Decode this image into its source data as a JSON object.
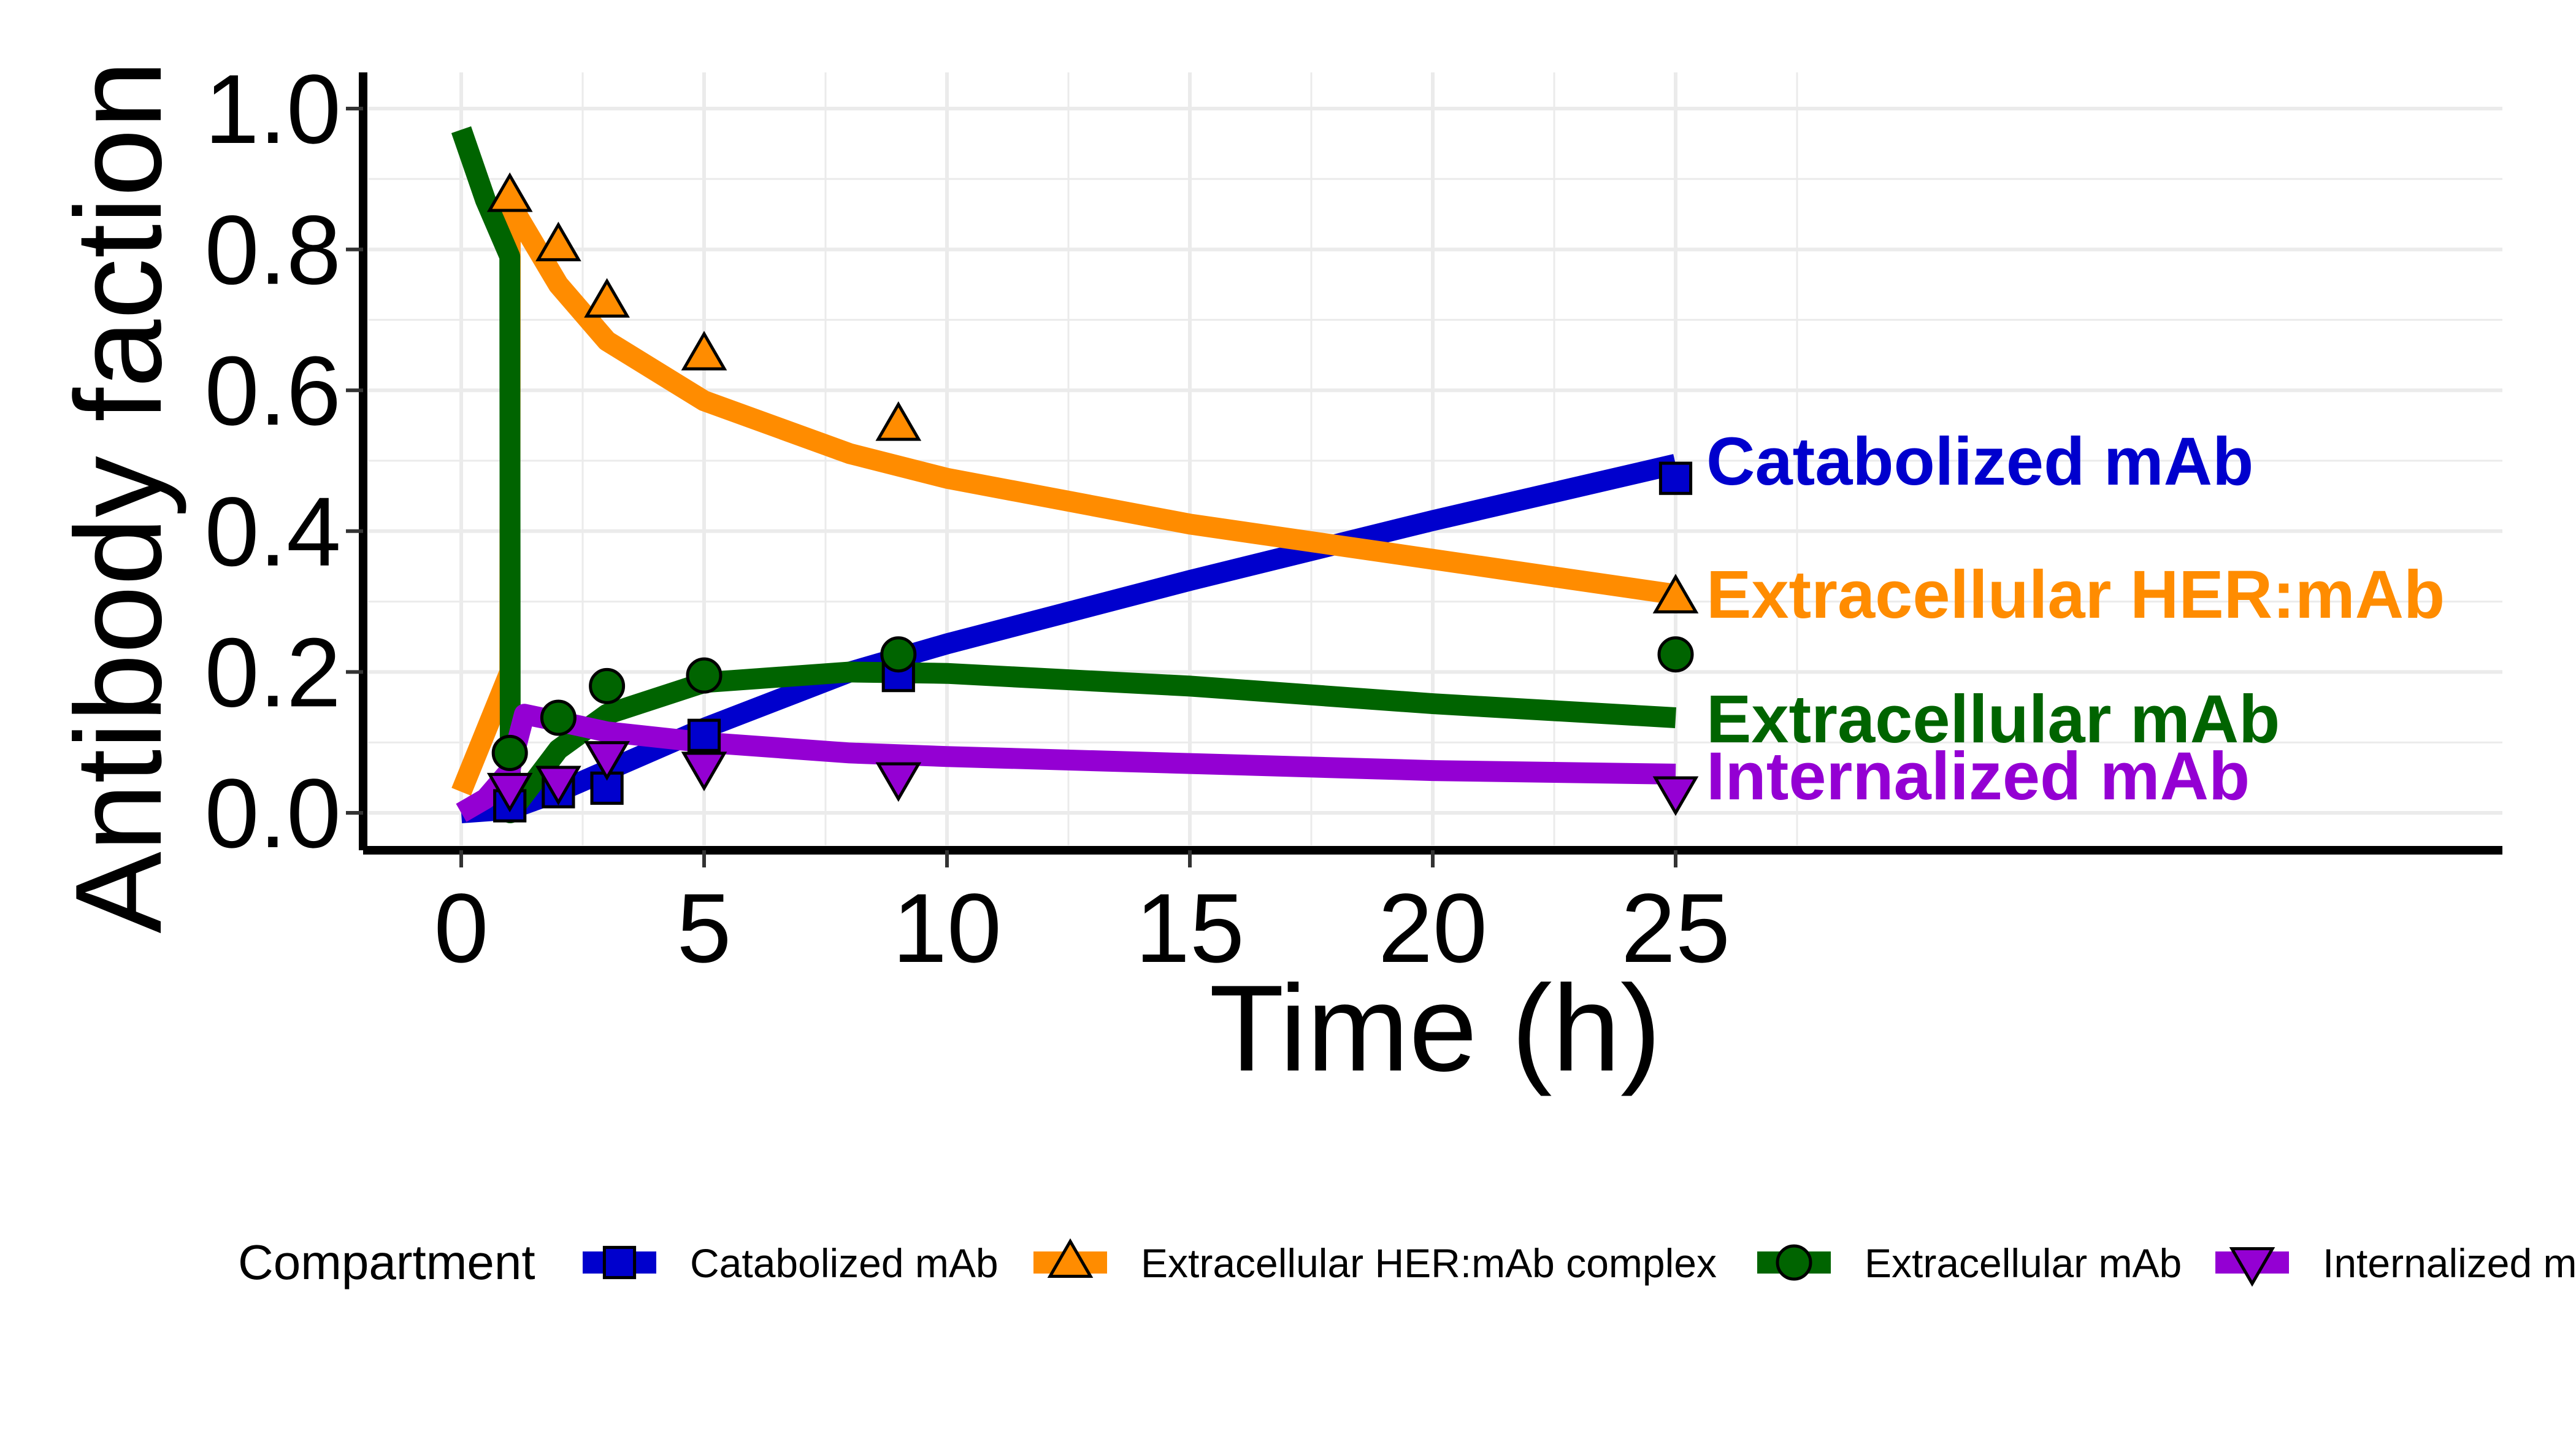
{
  "chart_data": {
    "type": "line",
    "xlabel": "Time (h)",
    "ylabel": "Antibody faction",
    "xlim": [
      -2,
      42
    ],
    "ylim": [
      -0.05,
      1.05
    ],
    "x_ticks": [
      0,
      5,
      10,
      15,
      20,
      25
    ],
    "x_tick_labels": [
      "0",
      "5",
      "10",
      "15",
      "20",
      "25"
    ],
    "y_ticks": [
      0.0,
      0.2,
      0.4,
      0.6,
      0.8,
      1.0
    ],
    "y_tick_labels": [
      "0.0",
      "0.2",
      "0.4",
      "0.6",
      "0.8",
      "1.0"
    ],
    "grid": true,
    "legend": {
      "title": "Compartment",
      "placement": "bottom"
    },
    "series": [
      {
        "name": "Catabolized mAb",
        "end_label": "Catabolized mAb",
        "color": "#0000CD",
        "marker": "square",
        "points": [
          [
            1,
            0.01
          ],
          [
            2,
            0.03
          ],
          [
            3,
            0.035
          ],
          [
            5,
            0.11
          ],
          [
            9,
            0.195
          ],
          [
            25,
            0.475
          ]
        ],
        "fit": [
          [
            0,
            0.0
          ],
          [
            1,
            0.005
          ],
          [
            2,
            0.03
          ],
          [
            3,
            0.06
          ],
          [
            5,
            0.12
          ],
          [
            8,
            0.2
          ],
          [
            10,
            0.24
          ],
          [
            15,
            0.33
          ],
          [
            20,
            0.415
          ],
          [
            25,
            0.495
          ]
        ]
      },
      {
        "name": "Extracellular HER:mAb complex",
        "end_label": "Extracellular HER:mAb",
        "color": "#FF8C00",
        "marker": "triangle-up",
        "points": [
          [
            1,
            0.875
          ],
          [
            2,
            0.805
          ],
          [
            3,
            0.725
          ],
          [
            5,
            0.65
          ],
          [
            9,
            0.55
          ],
          [
            25,
            0.305
          ]
        ],
        "fit": [
          [
            0,
            0.03
          ],
          [
            1,
            0.2
          ],
          [
            1.01,
            0.865
          ],
          [
            2,
            0.75
          ],
          [
            3,
            0.67
          ],
          [
            5,
            0.585
          ],
          [
            8,
            0.51
          ],
          [
            10,
            0.475
          ],
          [
            15,
            0.41
          ],
          [
            20,
            0.36
          ],
          [
            25,
            0.31
          ]
        ]
      },
      {
        "name": "Extracellular mAb",
        "end_label": "Extracellular mAb",
        "color": "#006400",
        "marker": "circle",
        "points": [
          [
            1,
            0.085
          ],
          [
            2,
            0.135
          ],
          [
            3,
            0.18
          ],
          [
            5,
            0.195
          ],
          [
            9,
            0.225
          ],
          [
            25,
            0.225
          ]
        ],
        "fit": [
          [
            0,
            0.97
          ],
          [
            0.5,
            0.87
          ],
          [
            1,
            0.79
          ],
          [
            1.01,
            0.0
          ],
          [
            2,
            0.09
          ],
          [
            3,
            0.14
          ],
          [
            5,
            0.185
          ],
          [
            8,
            0.2
          ],
          [
            10,
            0.198
          ],
          [
            15,
            0.18
          ],
          [
            20,
            0.155
          ],
          [
            25,
            0.135
          ]
        ]
      },
      {
        "name": "Internalized mAb",
        "end_label": "Internalized mAb",
        "color": "#9400D3",
        "marker": "triangle-down",
        "points": [
          [
            1,
            0.035
          ],
          [
            2,
            0.045
          ],
          [
            3,
            0.08
          ],
          [
            5,
            0.065
          ],
          [
            9,
            0.05
          ],
          [
            25,
            0.03
          ]
        ],
        "fit": [
          [
            0,
            0.0
          ],
          [
            0.5,
            0.02
          ],
          [
            1,
            0.06
          ],
          [
            1.3,
            0.14
          ],
          [
            2,
            0.13
          ],
          [
            3,
            0.115
          ],
          [
            5,
            0.1
          ],
          [
            8,
            0.085
          ],
          [
            10,
            0.08
          ],
          [
            15,
            0.07
          ],
          [
            20,
            0.06
          ],
          [
            25,
            0.055
          ]
        ]
      }
    ]
  }
}
